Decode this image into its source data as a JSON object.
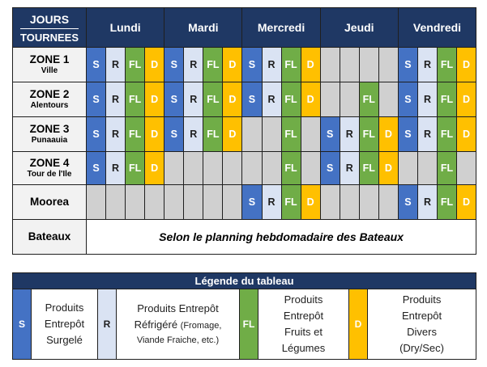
{
  "header": {
    "corner_jours": "Jours",
    "corner_tournees": "Tournees",
    "days": [
      "Lundi",
      "Mardi",
      "Mercredi",
      "Jeudi",
      "Vendredi"
    ]
  },
  "rows": [
    {
      "zone": "ZONE 1",
      "sub": "Ville",
      "days": [
        [
          "S",
          "R",
          "FL",
          "D"
        ],
        [
          "S",
          "R",
          "FL",
          "D"
        ],
        [
          "S",
          "R",
          "FL",
          "D"
        ],
        [
          "",
          "",
          "",
          ""
        ],
        [
          "S",
          "R",
          "FL",
          "D"
        ]
      ]
    },
    {
      "zone": "ZONE 2",
      "sub": "Alentours",
      "days": [
        [
          "S",
          "R",
          "FL",
          "D"
        ],
        [
          "S",
          "R",
          "FL",
          "D"
        ],
        [
          "S",
          "R",
          "FL",
          "D"
        ],
        [
          "",
          "",
          "FL",
          ""
        ],
        [
          "S",
          "R",
          "FL",
          "D"
        ]
      ]
    },
    {
      "zone": "ZONE 3",
      "sub": "Punaauia",
      "days": [
        [
          "S",
          "R",
          "FL",
          "D"
        ],
        [
          "S",
          "R",
          "FL",
          "D"
        ],
        [
          "",
          "",
          "FL",
          ""
        ],
        [
          "S",
          "R",
          "FL",
          "D"
        ],
        [
          "S",
          "R",
          "FL",
          "D"
        ]
      ]
    },
    {
      "zone": "ZONE 4",
      "sub": "Tour de l'Ile",
      "days": [
        [
          "S",
          "R",
          "FL",
          "D"
        ],
        [
          "",
          "",
          "",
          ""
        ],
        [
          "",
          "",
          "FL",
          ""
        ],
        [
          "S",
          "R",
          "FL",
          "D"
        ],
        [
          "",
          "",
          "FL",
          ""
        ]
      ]
    },
    {
      "zone": "Moorea",
      "sub": "",
      "days": [
        [
          "",
          "",
          "",
          ""
        ],
        [
          "",
          "",
          "",
          ""
        ],
        [
          "S",
          "R",
          "FL",
          "D"
        ],
        [
          "",
          "",
          "",
          ""
        ],
        [
          "S",
          "R",
          "FL",
          "D"
        ]
      ]
    }
  ],
  "boats": {
    "label": "Bateaux",
    "note": "Selon le planning hebdomadaire des Bateaux"
  },
  "legend": {
    "title": "Légende du tableau",
    "items": [
      {
        "code": "S",
        "lines": [
          "Produits",
          "Entrepôt",
          "Surgelé"
        ]
      },
      {
        "code": "R",
        "lines": [
          "Produits Entrepôt",
          "Réfrigéré (Fromage,",
          "Viande Fraiche, etc.)"
        ]
      },
      {
        "code": "FL",
        "lines": [
          "Produits",
          "Entrepôt",
          "Fruits et",
          "Légumes"
        ]
      },
      {
        "code": "D",
        "lines": [
          "Produits",
          "Entrepôt",
          "Divers",
          "(Dry/Sec)"
        ]
      }
    ]
  },
  "colors": {
    "S": "#4472c4",
    "R": "#dae3f3",
    "FL": "#70ad47",
    "D": "#ffc000",
    "header": "#1f3864",
    "empty": "#d0d0d0"
  }
}
